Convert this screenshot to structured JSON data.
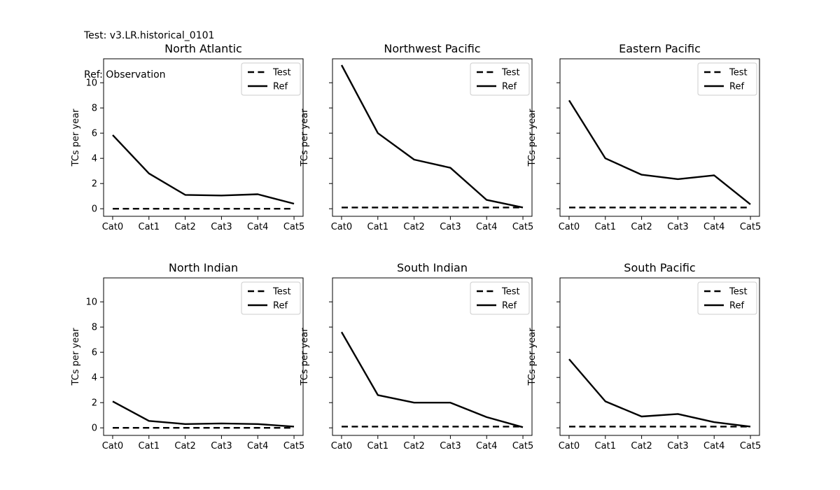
{
  "header": {
    "test_line": "Test: v3.LR.historical_0101",
    "ref_line": "Ref: Observation"
  },
  "style": {
    "line_color": "#000000",
    "background": "#ffffff",
    "legend_edge_color": "#cccccc",
    "axes_edge_color": "#000000"
  },
  "chart_data": [
    {
      "type": "line",
      "title": "North Atlantic",
      "ylabel": "TCs per year",
      "categories": [
        "Cat0",
        "Cat1",
        "Cat2",
        "Cat3",
        "Cat4",
        "Cat5"
      ],
      "yticks": [
        0,
        2,
        4,
        6,
        8,
        10
      ],
      "show_ytick_labels": true,
      "ylim": [
        -0.6,
        11.9
      ],
      "grid": false,
      "legend_position": "upper-right",
      "series": [
        {
          "name": "Test",
          "style": "dashed",
          "values": [
            0.0,
            0.0,
            0.0,
            0.0,
            0.0,
            0.0
          ]
        },
        {
          "name": "Ref",
          "style": "solid",
          "values": [
            5.85,
            2.8,
            1.1,
            1.05,
            1.15,
            0.4
          ]
        }
      ]
    },
    {
      "type": "line",
      "title": "Northwest Pacific",
      "ylabel": "TCs per year",
      "categories": [
        "Cat0",
        "Cat1",
        "Cat2",
        "Cat3",
        "Cat4",
        "Cat5"
      ],
      "yticks": [
        0,
        2,
        4,
        6,
        8,
        10
      ],
      "show_ytick_labels": false,
      "ylim": [
        -0.6,
        11.9
      ],
      "grid": false,
      "legend_position": "upper-right",
      "series": [
        {
          "name": "Test",
          "style": "dashed",
          "values": [
            0.1,
            0.1,
            0.1,
            0.1,
            0.1,
            0.1
          ]
        },
        {
          "name": "Ref",
          "style": "solid",
          "values": [
            11.4,
            6.0,
            3.9,
            3.25,
            0.7,
            0.1
          ]
        }
      ]
    },
    {
      "type": "line",
      "title": "Eastern Pacific",
      "ylabel": "TCs per year",
      "categories": [
        "Cat0",
        "Cat1",
        "Cat2",
        "Cat3",
        "Cat4",
        "Cat5"
      ],
      "yticks": [
        0,
        2,
        4,
        6,
        8,
        10
      ],
      "show_ytick_labels": false,
      "ylim": [
        -0.6,
        11.9
      ],
      "grid": false,
      "legend_position": "upper-right",
      "series": [
        {
          "name": "Test",
          "style": "dashed",
          "values": [
            0.1,
            0.1,
            0.1,
            0.1,
            0.1,
            0.1
          ]
        },
        {
          "name": "Ref",
          "style": "solid",
          "values": [
            8.6,
            4.0,
            2.7,
            2.35,
            2.65,
            0.35
          ]
        }
      ]
    },
    {
      "type": "line",
      "title": "North Indian",
      "ylabel": "TCs per year",
      "categories": [
        "Cat0",
        "Cat1",
        "Cat2",
        "Cat3",
        "Cat4",
        "Cat5"
      ],
      "yticks": [
        0,
        2,
        4,
        6,
        8,
        10
      ],
      "show_ytick_labels": true,
      "ylim": [
        -0.6,
        11.9
      ],
      "grid": false,
      "legend_position": "upper-right",
      "series": [
        {
          "name": "Test",
          "style": "dashed",
          "values": [
            0.0,
            0.0,
            0.0,
            0.0,
            0.0,
            0.0
          ]
        },
        {
          "name": "Ref",
          "style": "solid",
          "values": [
            2.1,
            0.55,
            0.3,
            0.35,
            0.3,
            0.1
          ]
        }
      ]
    },
    {
      "type": "line",
      "title": "South Indian",
      "ylabel": "TCs per year",
      "categories": [
        "Cat0",
        "Cat1",
        "Cat2",
        "Cat3",
        "Cat4",
        "Cat5"
      ],
      "yticks": [
        0,
        2,
        4,
        6,
        8,
        10
      ],
      "show_ytick_labels": false,
      "ylim": [
        -0.6,
        11.9
      ],
      "grid": false,
      "legend_position": "upper-right",
      "series": [
        {
          "name": "Test",
          "style": "dashed",
          "values": [
            0.1,
            0.1,
            0.1,
            0.1,
            0.1,
            0.1
          ]
        },
        {
          "name": "Ref",
          "style": "solid",
          "values": [
            7.6,
            2.6,
            2.0,
            2.0,
            0.85,
            0.05
          ]
        }
      ]
    },
    {
      "type": "line",
      "title": "South Pacific",
      "ylabel": "TCs per year",
      "categories": [
        "Cat0",
        "Cat1",
        "Cat2",
        "Cat3",
        "Cat4",
        "Cat5"
      ],
      "yticks": [
        0,
        2,
        4,
        6,
        8,
        10
      ],
      "show_ytick_labels": false,
      "ylim": [
        -0.6,
        11.9
      ],
      "grid": false,
      "legend_position": "upper-right",
      "series": [
        {
          "name": "Test",
          "style": "dashed",
          "values": [
            0.1,
            0.1,
            0.1,
            0.1,
            0.1,
            0.1
          ]
        },
        {
          "name": "Ref",
          "style": "solid",
          "values": [
            5.45,
            2.1,
            0.9,
            1.1,
            0.45,
            0.1
          ]
        }
      ]
    }
  ]
}
